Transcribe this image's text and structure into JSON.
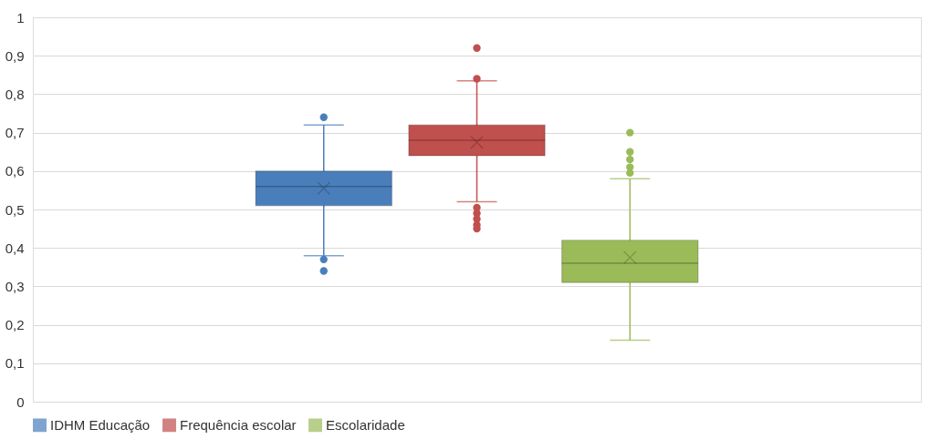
{
  "chart_data": {
    "type": "box",
    "categories": [
      null
    ],
    "series": [
      {
        "name": "IDHM Educação",
        "color": "#4a7ebb",
        "boxes": [
          {
            "low": 0.38,
            "q1": 0.51,
            "median": 0.56,
            "q3": 0.6,
            "high": 0.72,
            "mean": 0.555,
            "outliers": [
              0.74,
              0.37,
              0.34
            ]
          }
        ]
      },
      {
        "name": "Frequência escolar",
        "color": "#c0504d",
        "boxes": [
          {
            "low": 0.52,
            "q1": 0.64,
            "median": 0.68,
            "q3": 0.72,
            "high": 0.835,
            "mean": 0.675,
            "outliers": [
              0.92,
              0.84,
              0.505,
              0.49,
              0.475,
              0.46,
              0.45
            ]
          }
        ]
      },
      {
        "name": "Escolaridade",
        "color": "#9bbb59",
        "boxes": [
          {
            "low": 0.16,
            "q1": 0.31,
            "median": 0.36,
            "q3": 0.42,
            "high": 0.58,
            "mean": 0.375,
            "outliers": [
              0.7,
              0.65,
              0.63,
              0.61,
              0.595
            ]
          }
        ]
      }
    ],
    "ylim": [
      0,
      1
    ],
    "yticks": [
      0,
      {
        "value": 0.1,
        "label": "0,1"
      },
      {
        "value": 0.2,
        "label": "0,2"
      },
      {
        "value": 0.3,
        "label": "0,3"
      },
      {
        "value": 0.4,
        "label": "0,4"
      },
      {
        "value": 0.5,
        "label": "0,5"
      },
      {
        "value": 0.6,
        "label": "0,6"
      },
      {
        "value": 0.7,
        "label": "0,7"
      },
      {
        "value": 0.8,
        "label": "0,8"
      },
      {
        "value": 0.9,
        "label": "0,9"
      },
      1
    ],
    "grid": "y",
    "legend": "bottom",
    "tick_labels": "y"
  }
}
